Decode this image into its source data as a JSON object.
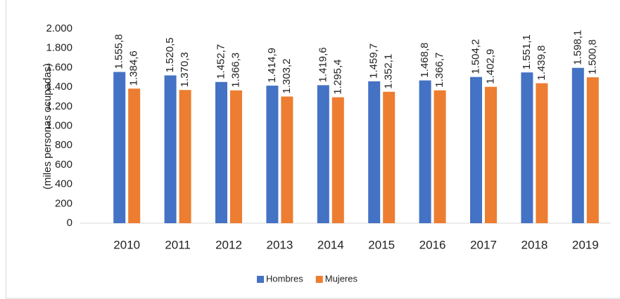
{
  "chart_data": {
    "type": "bar",
    "y_label": "(miles personas ocupadas)",
    "categories": [
      "2010",
      "2011",
      "2012",
      "2013",
      "2014",
      "2015",
      "2016",
      "2017",
      "2018",
      "2019"
    ],
    "series": [
      {
        "name": "Hombres",
        "color": "#4472c4",
        "values": [
          1555.8,
          1520.5,
          1452.7,
          1414.9,
          1419.6,
          1459.7,
          1468.8,
          1504.2,
          1551.1,
          1598.1
        ],
        "value_labels": [
          "1.555,8",
          "1.520,5",
          "1.452,7",
          "1.414,9",
          "1.419,6",
          "1.459,7",
          "1.468,8",
          "1.504,2",
          "1.551,1",
          "1.598,1"
        ]
      },
      {
        "name": "Mujeres",
        "color": "#ed7d31",
        "values": [
          1384.6,
          1370.3,
          1366.3,
          1303.2,
          1295.4,
          1352.1,
          1366.7,
          1402.9,
          1439.8,
          1500.8
        ],
        "value_labels": [
          "1.384,6",
          "1.370,3",
          "1.366,3",
          "1.303,2",
          "1.295,4",
          "1.352,1",
          "1.366,7",
          "1.402,9",
          "1.439,8",
          "1.500,8"
        ]
      }
    ],
    "ylim": [
      0,
      2000
    ],
    "yticks": [
      0,
      200,
      400,
      600,
      800,
      {
        "value": 1000,
        "label": "1.000"
      },
      {
        "value": 1200,
        "label": "1.200"
      },
      {
        "value": 1400,
        "label": "1.400"
      },
      {
        "value": 1600,
        "label": "1.600"
      },
      {
        "value": 1800,
        "label": "1.800"
      },
      {
        "value": 2000,
        "label": "2.000"
      }
    ],
    "grid": false,
    "legend": "bottom"
  }
}
